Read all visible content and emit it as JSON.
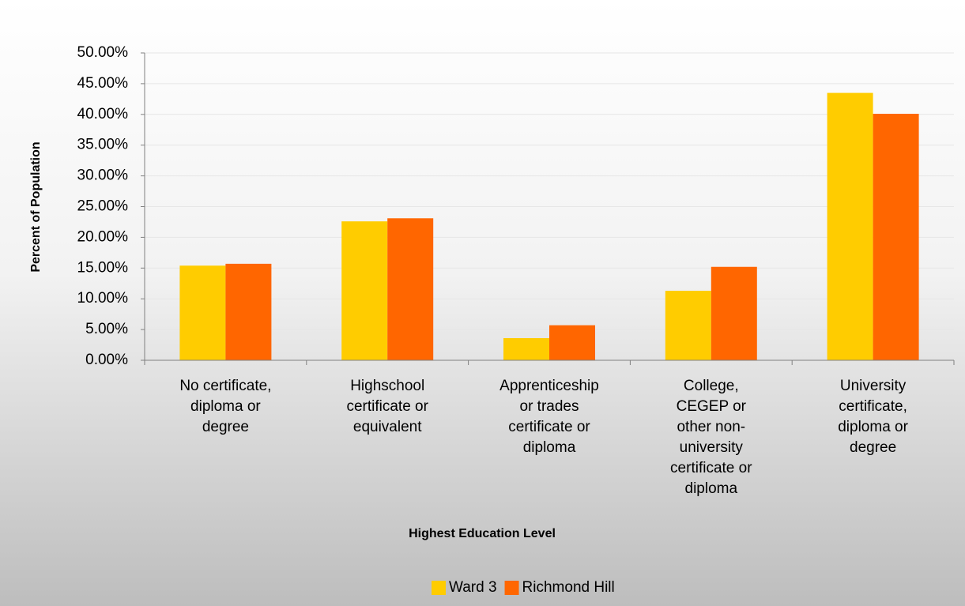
{
  "chart_data": {
    "type": "bar",
    "x_label": "Highest Education Level",
    "y_label": "Percent of Population",
    "categories": [
      "No certificate, diploma or degree",
      "Highschool certificate or equivalent",
      "Apprenticeship or trades certificate or diploma",
      "College, CEGEP or other non-university certificate or diploma",
      "University certificate, diploma or degree"
    ],
    "series": [
      {
        "name": "Ward 3",
        "color": "#ffcc00",
        "values": [
          15.4,
          22.6,
          3.6,
          11.3,
          43.5
        ]
      },
      {
        "name": "Richmond Hill",
        "color": "#ff6600",
        "values": [
          15.7,
          23.1,
          5.7,
          15.2,
          40.1
        ]
      }
    ],
    "ylim": [
      0,
      50
    ],
    "yticks": [
      {
        "value": 0,
        "label": "0.00%"
      },
      {
        "value": 5,
        "label": "5.00%"
      },
      {
        "value": 10,
        "label": "10.00%"
      },
      {
        "value": 15,
        "label": "15.00%"
      },
      {
        "value": 20,
        "label": "20.00%"
      },
      {
        "value": 25,
        "label": "25.00%"
      },
      {
        "value": 30,
        "label": "30.00%"
      },
      {
        "value": 35,
        "label": "35.00%"
      },
      {
        "value": 40,
        "label": "40.00%"
      },
      {
        "value": 45,
        "label": "45.00%"
      },
      {
        "value": 50,
        "label": "50.00%"
      }
    ],
    "grid": true,
    "legend": "bottom"
  }
}
